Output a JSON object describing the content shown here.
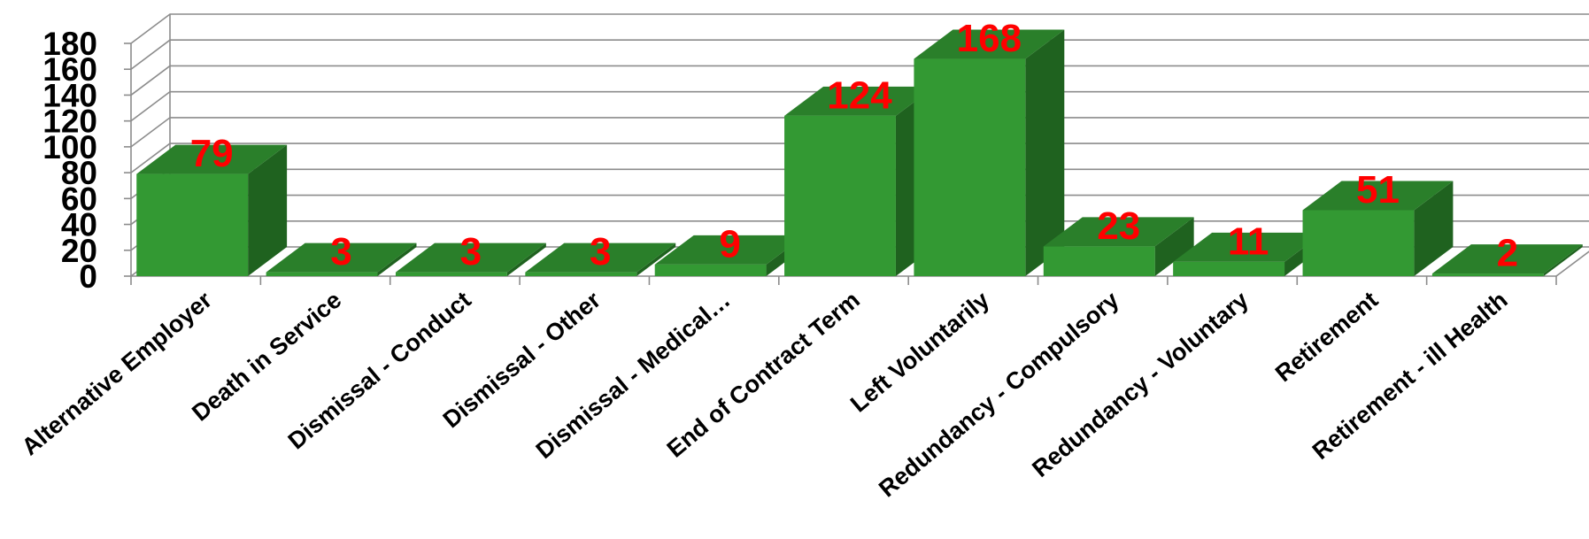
{
  "chart_data": {
    "type": "bar",
    "style": "3d-column",
    "categories": [
      "Alternative Employer",
      "Death in Service",
      "Dismissal - Conduct",
      "Dismissal - Other",
      "Dismissal - Medical…",
      "End of Contract Term",
      "Left Voluntarily",
      "Redundancy - Compulsory",
      "Redundancy - Voluntary",
      "Retirement",
      "Retirement - ill Health"
    ],
    "values": [
      79,
      3,
      3,
      3,
      9,
      124,
      168,
      23,
      11,
      51,
      2
    ],
    "ylim": [
      0,
      180
    ],
    "yticks": [
      "0",
      "20",
      "40",
      "60",
      "80",
      "100",
      "120",
      "140",
      "160",
      "180"
    ],
    "grid": true,
    "legend": "none",
    "colors": {
      "bar_front": "#339933",
      "bar_top": "#2a7f2a",
      "bar_side": "#1f621f",
      "data_label": "#ff0000",
      "grid": "#8c8c8c"
    }
  }
}
